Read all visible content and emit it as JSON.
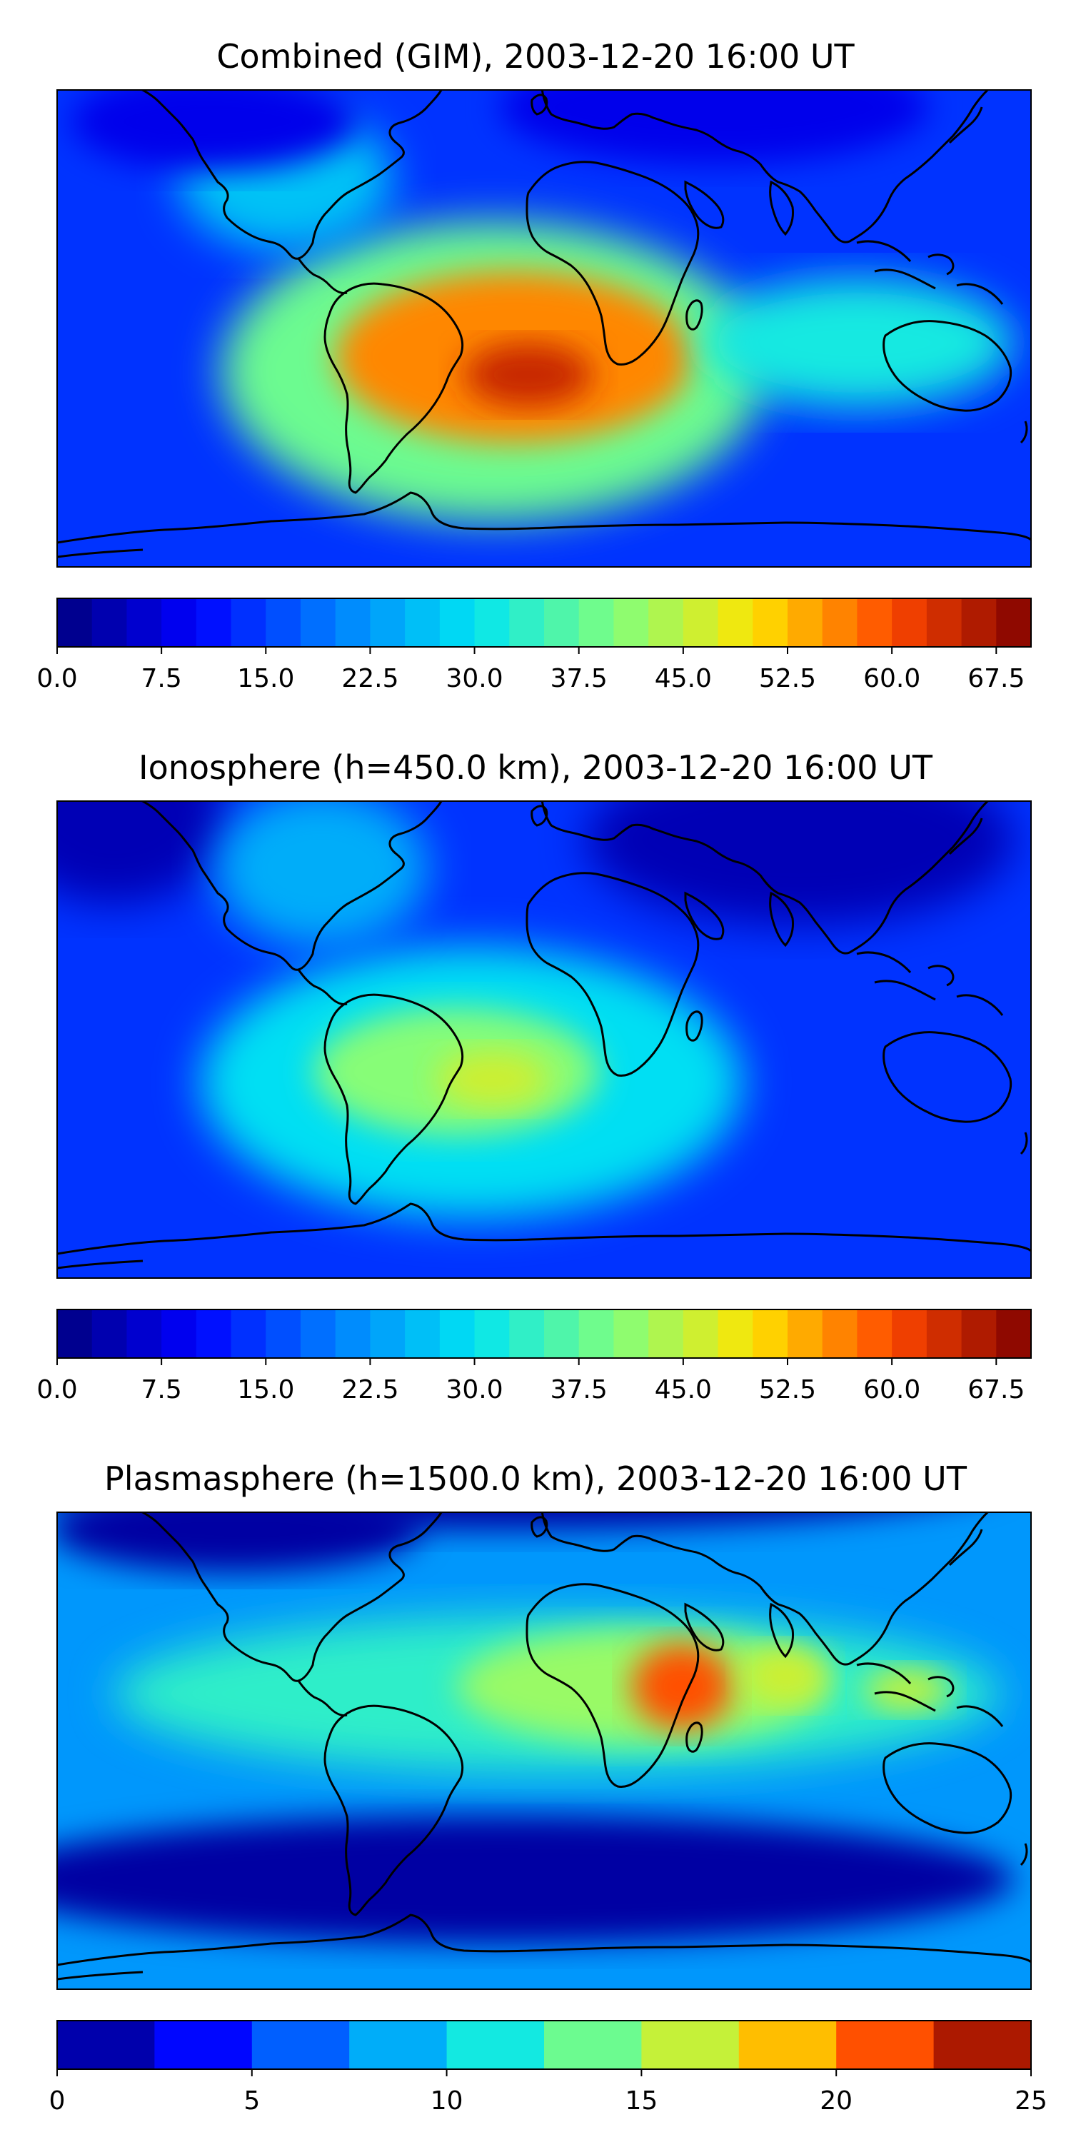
{
  "figure": {
    "panels": [
      {
        "title": "Combined (GIM), 2003-12-20 16:00 UT",
        "colorbar": {
          "min": 0.0,
          "max": 70.0,
          "levels": 28,
          "ticks": [
            "0.0",
            "7.5",
            "15.0",
            "22.5",
            "30.0",
            "37.5",
            "45.0",
            "52.5",
            "60.0",
            "67.5"
          ],
          "tick_values": [
            0,
            7.5,
            15,
            22.5,
            30,
            37.5,
            45,
            52.5,
            60,
            67.5
          ]
        }
      },
      {
        "title": "Ionosphere  (h=450.0 km), 2003-12-20 16:00 UT",
        "colorbar": {
          "min": 0.0,
          "max": 70.0,
          "levels": 28,
          "ticks": [
            "0.0",
            "7.5",
            "15.0",
            "22.5",
            "30.0",
            "37.5",
            "45.0",
            "52.5",
            "60.0",
            "67.5"
          ],
          "tick_values": [
            0,
            7.5,
            15,
            22.5,
            30,
            37.5,
            45,
            52.5,
            60,
            67.5
          ]
        }
      },
      {
        "title": "Plasmasphere (h=1500.0 km), 2003-12-20 16:00 UT",
        "colorbar": {
          "min": 0,
          "max": 25,
          "levels": 10,
          "ticks": [
            "0",
            "5",
            "10",
            "15",
            "20",
            "25"
          ],
          "tick_values": [
            0,
            5,
            10,
            15,
            20,
            25
          ]
        }
      }
    ]
  },
  "colors": {
    "jet_stops": [
      "#00007f",
      "#0000ff",
      "#007fff",
      "#00e5f2",
      "#7fff7f",
      "#ffe500",
      "#ff4800",
      "#7f0000"
    ],
    "coastline": "#000000"
  }
}
